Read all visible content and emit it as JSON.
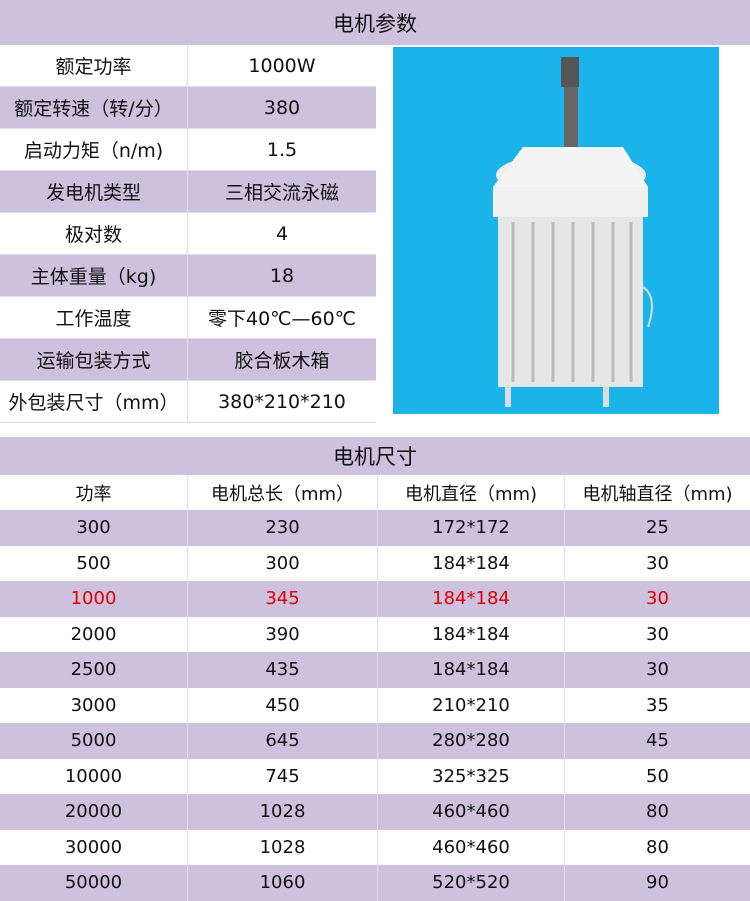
{
  "params": {
    "title": "电机参数",
    "rows": [
      {
        "label": "额定功率",
        "value": "1000W"
      },
      {
        "label": "额定转速（转/分）",
        "value": "380"
      },
      {
        "label": "启动力矩（n/m)",
        "value": "1.5"
      },
      {
        "label": "发电机类型",
        "value": "三相交流永磁"
      },
      {
        "label": "极对数",
        "value": "4"
      },
      {
        "label": "主体重量（kg)",
        "value": "18"
      },
      {
        "label": "工作温度",
        "value": "零下40℃—60℃"
      },
      {
        "label": "运输包装方式",
        "value": "胶合板木箱"
      },
      {
        "label": "外包装尺寸（mm）",
        "value": "380*210*210"
      }
    ]
  },
  "dims": {
    "title": "电机尺寸",
    "headers": [
      "功率",
      "电机总长（mm）",
      "电机直径（mm)",
      "电机轴直径（mm)"
    ],
    "rows": [
      [
        "300",
        "230",
        "172*172",
        "25"
      ],
      [
        "500",
        "300",
        "184*184",
        "30"
      ],
      [
        "1000",
        "345",
        "184*184",
        "30"
      ],
      [
        "2000",
        "390",
        "184*184",
        "30"
      ],
      [
        "2500",
        "435",
        "184*184",
        "30"
      ],
      [
        "3000",
        "450",
        "210*210",
        "35"
      ],
      [
        "5000",
        "645",
        "280*280",
        "45"
      ],
      [
        "10000",
        "745",
        "325*325",
        "50"
      ],
      [
        "20000",
        "1028",
        "460*460",
        "80"
      ],
      [
        "30000",
        "1028",
        "460*460",
        "80"
      ],
      [
        "50000",
        "1060",
        "520*520",
        "90"
      ]
    ],
    "highlight_row": "1000",
    "highlight_color": "#e00000"
  },
  "colors": {
    "band": "#cdc1dd",
    "photo_bg": "#1ab4ea"
  }
}
